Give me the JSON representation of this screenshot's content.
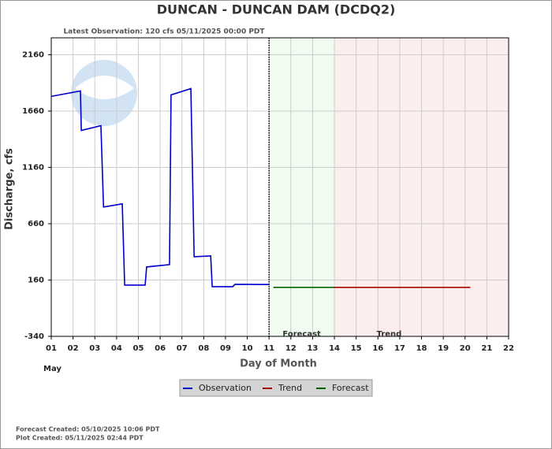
{
  "chart_data": {
    "type": "line",
    "title": "DUNCAN - DUNCAN DAM  (DCDQ2)",
    "subtitle": "Latest Observation: 120 cfs 05/11/2025 00:00 PDT",
    "x_label": "Day of Month",
    "x_sublabel": "May",
    "y_label": "Discharge, cfs",
    "xlim": [
      1,
      22
    ],
    "xticks": [
      {
        "value": 1,
        "label": "01"
      },
      {
        "value": 2,
        "label": "02"
      },
      {
        "value": 3,
        "label": "03"
      },
      {
        "value": 4,
        "label": "04"
      },
      {
        "value": 5,
        "label": "05"
      },
      {
        "value": 6,
        "label": "06"
      },
      {
        "value": 7,
        "label": "07"
      },
      {
        "value": 8,
        "label": "08"
      },
      {
        "value": 9,
        "label": "09"
      },
      10,
      11,
      12,
      13,
      14,
      15,
      16,
      17,
      18,
      19,
      20,
      21,
      22
    ],
    "ylim": [
      -340,
      2310
    ],
    "yticks": [
      -340,
      160,
      660,
      1160,
      1660,
      2160
    ],
    "grid": true,
    "regions": [
      {
        "name": "Forecast",
        "start": 11,
        "end": 14,
        "color": "#effcef"
      },
      {
        "name": "Trend",
        "start": 14,
        "end": 22,
        "color": "#fdeeee"
      }
    ],
    "series": [
      {
        "name": "Observation",
        "color": "#0000cc",
        "x": [
          1,
          2.34,
          2.38,
          3.28,
          3.4,
          4.26,
          4.37,
          5.31,
          5.38,
          6.43,
          6.5,
          7.41,
          7.56,
          8.32,
          8.39,
          9.33,
          9.44,
          11
        ],
        "values": [
          1790,
          1838,
          1488,
          1530,
          808,
          836,
          115,
          115,
          276,
          297,
          1803,
          1859,
          367,
          374,
          101,
          101,
          122,
          120
        ]
      },
      {
        "name": "Trend",
        "color": "#aa0000",
        "x": [
          14,
          20.24
        ],
        "values": [
          95,
          95
        ]
      },
      {
        "name": "Forecast",
        "color": "#006600",
        "x": [
          11.2,
          14
        ],
        "values": [
          95,
          95
        ]
      }
    ],
    "forecast_created": "Forecast Created: 05/10/2025 10:06 PDT",
    "plot_created": "Plot Created: 05/11/2025 02:44 PDT"
  }
}
